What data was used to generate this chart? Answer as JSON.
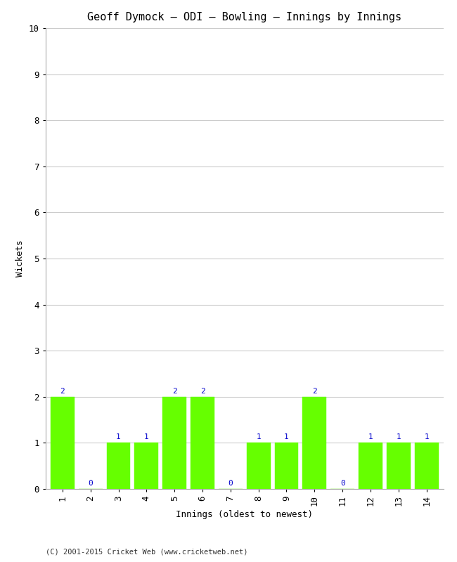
{
  "title": "Geoff Dymock – ODI – Bowling – Innings by Innings",
  "xlabel": "Innings (oldest to newest)",
  "ylabel": "Wickets",
  "categories": [
    1,
    2,
    3,
    4,
    5,
    6,
    7,
    8,
    9,
    10,
    11,
    12,
    13,
    14
  ],
  "values": [
    2,
    0,
    1,
    1,
    2,
    2,
    0,
    1,
    1,
    2,
    0,
    1,
    1,
    1
  ],
  "bar_color": "#66ff00",
  "bar_edge_color": "#66ff00",
  "label_color": "#0000cc",
  "ylim": [
    0,
    10
  ],
  "yticks": [
    0,
    1,
    2,
    3,
    4,
    5,
    6,
    7,
    8,
    9,
    10
  ],
  "grid_color": "#cccccc",
  "background_color": "#ffffff",
  "title_fontsize": 11,
  "axis_label_fontsize": 9,
  "tick_fontsize": 9,
  "annotation_fontsize": 8,
  "footer": "(C) 2001-2015 Cricket Web (www.cricketweb.net)"
}
